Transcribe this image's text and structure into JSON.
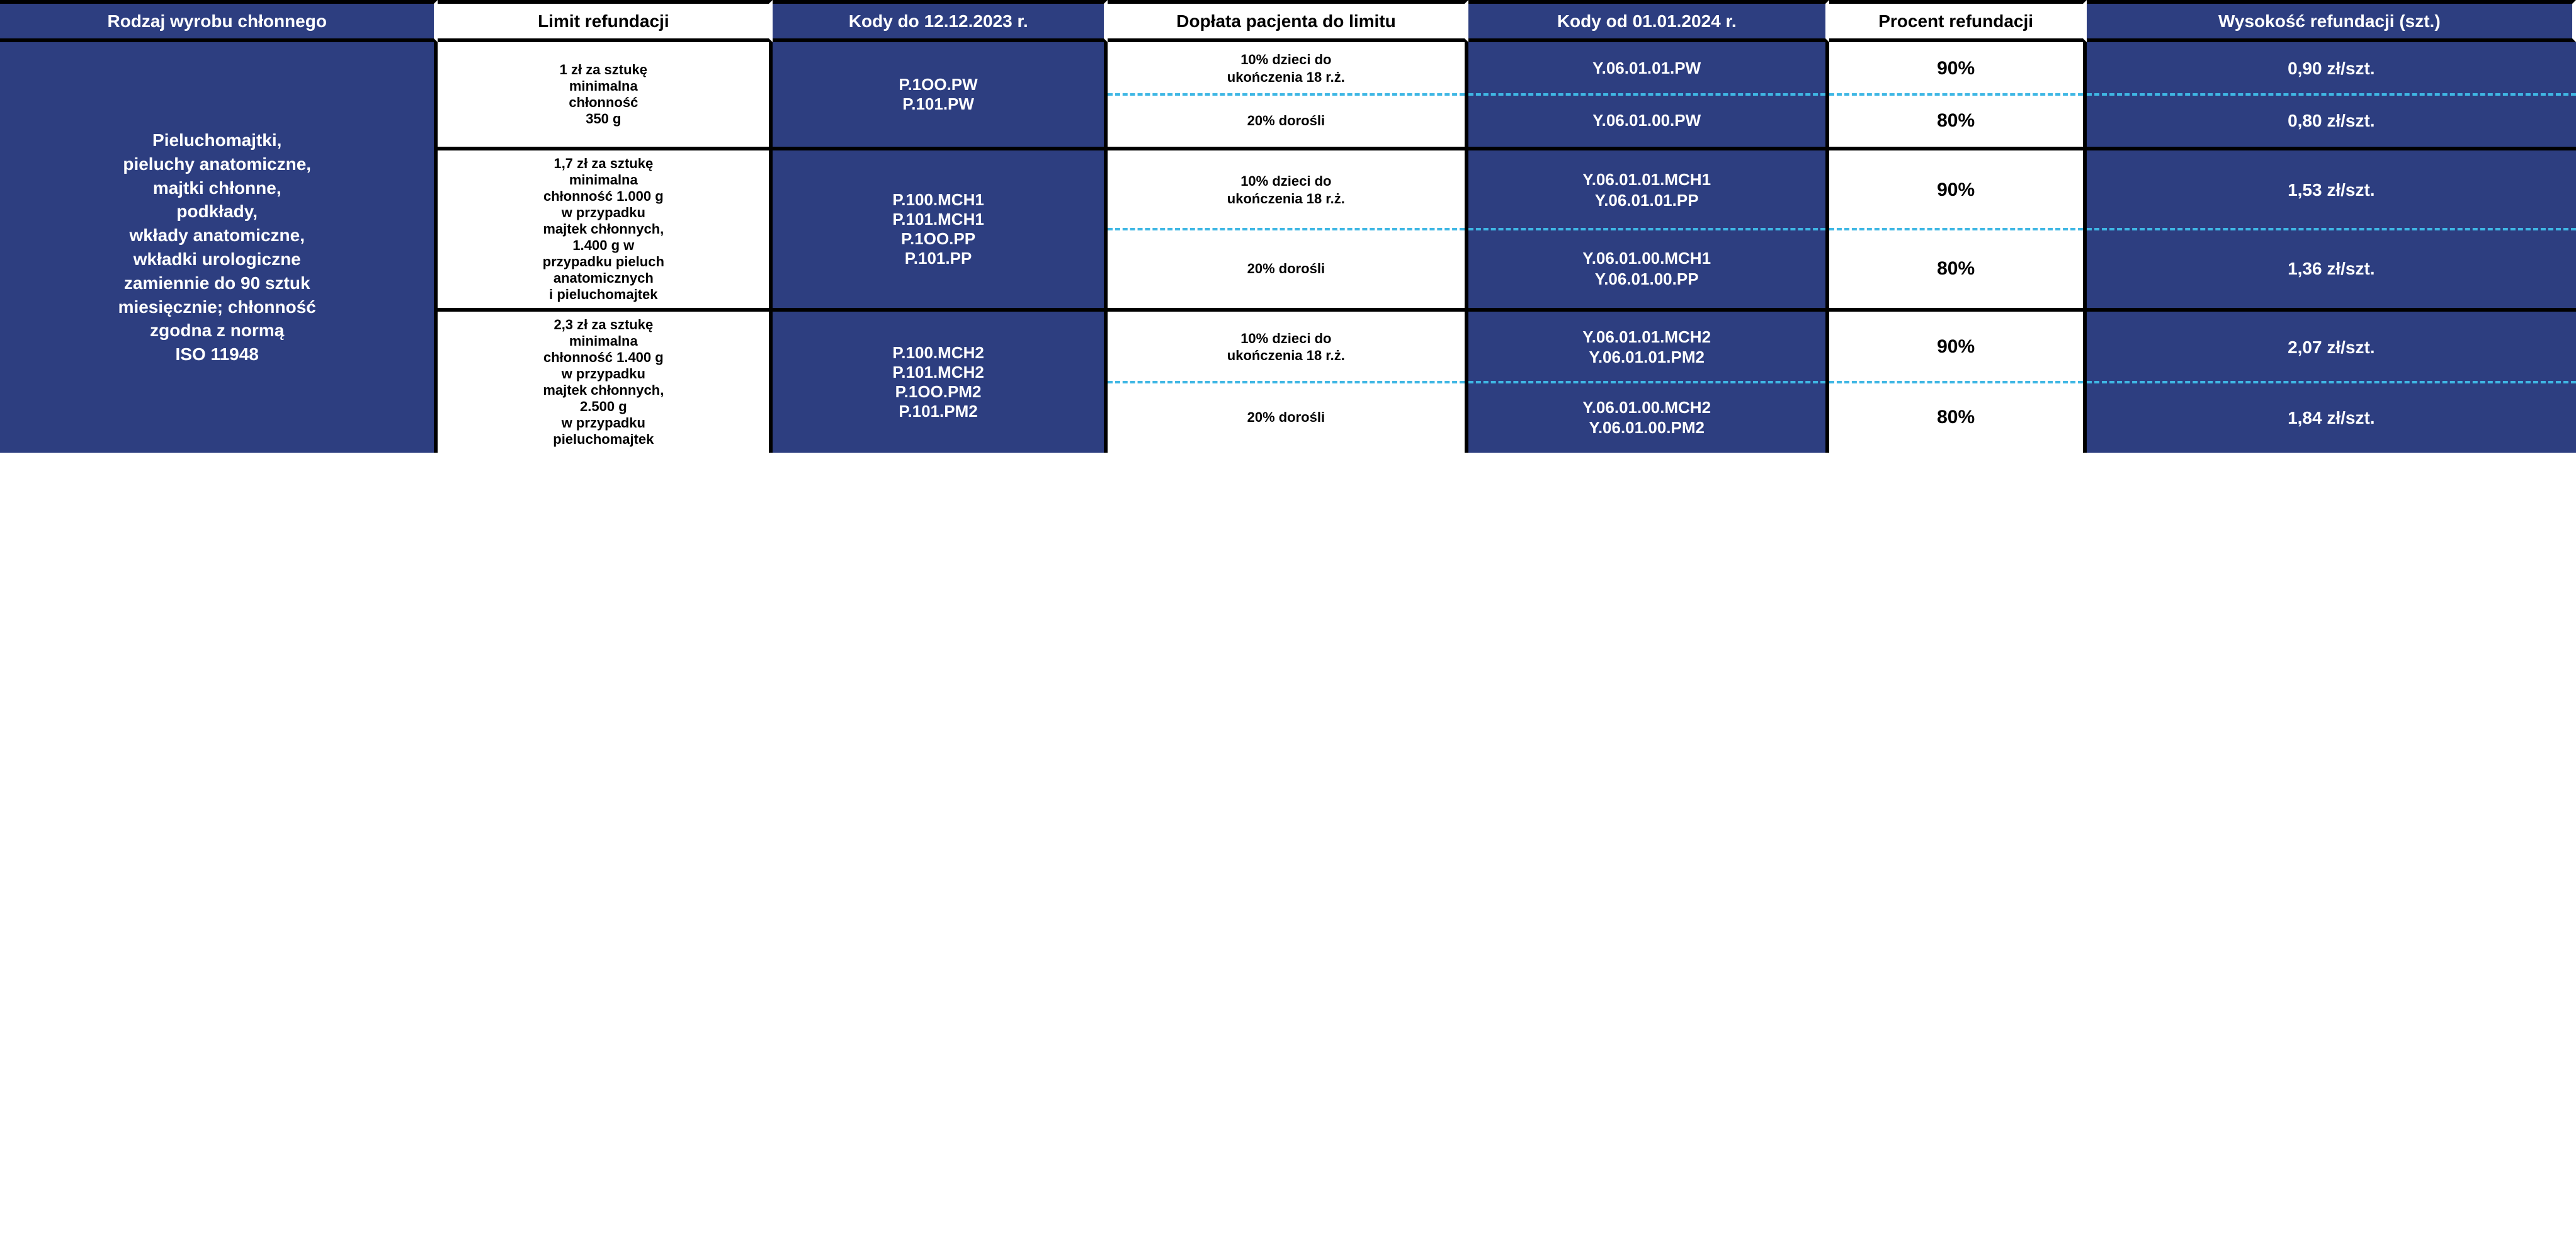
{
  "colors": {
    "blue": "#2d3e80",
    "white": "#ffffff",
    "black": "#000000",
    "dash": "#3fb7e4"
  },
  "headers": {
    "col1": "Rodzaj wyrobu chłonnego",
    "col2": "Limit refundacji",
    "col3": "Kody do 12.12.2023 r.",
    "col4": "Dopłata pacjenta do limitu",
    "col5": "Kody od 01.01.2024 r.",
    "col6": "Procent refundacji",
    "col7": "Wysokość refundacji (szt.)"
  },
  "product_type": "Pieluchomajtki,\npieluchy anatomiczne,\nmajtki chłonne,\npodkłady,\nwkłady anatomiczne,\nwkładki urologiczne\nzamiennie do 90 sztuk\nmiesięcznie; chłonność\nzgodna z normą\nISO 11948",
  "groups": [
    {
      "limit": "1 zł za sztukę\nminimalna\nchłonność\n350 g",
      "codes_old": "P.1OO.PW\nP.101.PW",
      "sub": [
        {
          "doplata": "10% dzieci do\nukończenia 18 r.ż.",
          "codes_new": "Y.06.01.01.PW",
          "percent": "90%",
          "wysokosc": "0,90 zł/szt."
        },
        {
          "doplata": "20% dorośli",
          "codes_new": "Y.06.01.00.PW",
          "percent": "80%",
          "wysokosc": "0,80 zł/szt."
        }
      ]
    },
    {
      "limit": "1,7 zł za sztukę\nminimalna\nchłonność 1.000 g\nw przypadku\nmajtek chłonnych,\n1.400 g w\nprzypadku pieluch\nanatomicznych\ni pieluchomajtek",
      "codes_old": "P.100.MCH1\nP.101.MCH1\nP.1OO.PP\nP.101.PP",
      "sub": [
        {
          "doplata": "10% dzieci do\nukończenia 18 r.ż.",
          "codes_new": "Y.06.01.01.MCH1\nY.06.01.01.PP",
          "percent": "90%",
          "wysokosc": "1,53 zł/szt."
        },
        {
          "doplata": "20% dorośli",
          "codes_new": "Y.06.01.00.MCH1\nY.06.01.00.PP",
          "percent": "80%",
          "wysokosc": "1,36 zł/szt."
        }
      ]
    },
    {
      "limit": "2,3 zł za sztukę\nminimalna\nchłonność 1.400 g\nw przypadku\nmajtek chłonnych,\n2.500 g\nw przypadku\npieluchomajtek",
      "codes_old": "P.100.MCH2\nP.101.MCH2\nP.1OO.PM2\nP.101.PM2",
      "sub": [
        {
          "doplata": "10% dzieci do\nukończenia 18 r.ż.",
          "codes_new": "Y.06.01.01.MCH2\nY.06.01.01.PM2",
          "percent": "90%",
          "wysokosc": "2,07 zł/szt."
        },
        {
          "doplata": "20% dorośli",
          "codes_new": "Y.06.01.00.MCH2\nY.06.01.00.PM2",
          "percent": "80%",
          "wysokosc": "1,84 zł/szt."
        }
      ]
    }
  ]
}
